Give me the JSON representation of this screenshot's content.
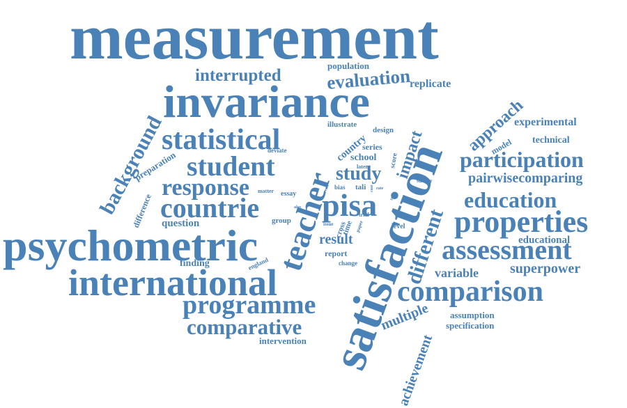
{
  "colors": {
    "word": "#4a82b8",
    "background": "#ffffff"
  },
  "words": {
    "measurement": "measurement",
    "invariance": "invariance",
    "satisfaction": "satisfaction",
    "psychometric": "psychometric",
    "international": "international",
    "teacher": "teacher",
    "countrie": "countrie",
    "pisa": "pisa",
    "student": "student",
    "statistical": "statistical",
    "response": "response",
    "properties": "properties",
    "assessment": "assessment",
    "comparison": "comparison",
    "programme": "programme",
    "comparative": "comparative",
    "participation": "participation",
    "education": "education",
    "background": "background",
    "different": "different",
    "evaluation": "evaluation",
    "interrupted": "interrupted",
    "study": "study",
    "impact": "impact",
    "approach": "approach",
    "pairwisecomparing": "pairwisecomparing",
    "multiple": "multiple",
    "achievement": "achievement",
    "superpower": "superpower",
    "experimental": "experimental",
    "technical": "technical",
    "replicate": "replicate",
    "population": "population",
    "variable": "variable",
    "educational": "educational",
    "result": "result",
    "question": "question",
    "finding": "finding",
    "intervention": "intervention",
    "assumption": "assumption",
    "specification": "specification",
    "country": "country",
    "school": "school",
    "preparation": "preparation",
    "difference": "difference",
    "design": "design",
    "series": "series",
    "illustrate": "illustrate",
    "model": "model",
    "report": "report",
    "england": "england",
    "essay": "essay",
    "group": "group",
    "matter": "matter",
    "deviate": "deviate",
    "change": "change",
    "level": "level",
    "survey": "survey",
    "latent": "latent",
    "score": "score",
    "tali": "tali",
    "bias": "bias",
    "trial": "trial",
    "cross": "cross",
    "time": "time",
    "issue": "issue",
    "paper": "paper",
    "trend": "trend",
    "trait": "trait",
    "rate": "rate",
    "case": "case",
    "also": "also"
  }
}
